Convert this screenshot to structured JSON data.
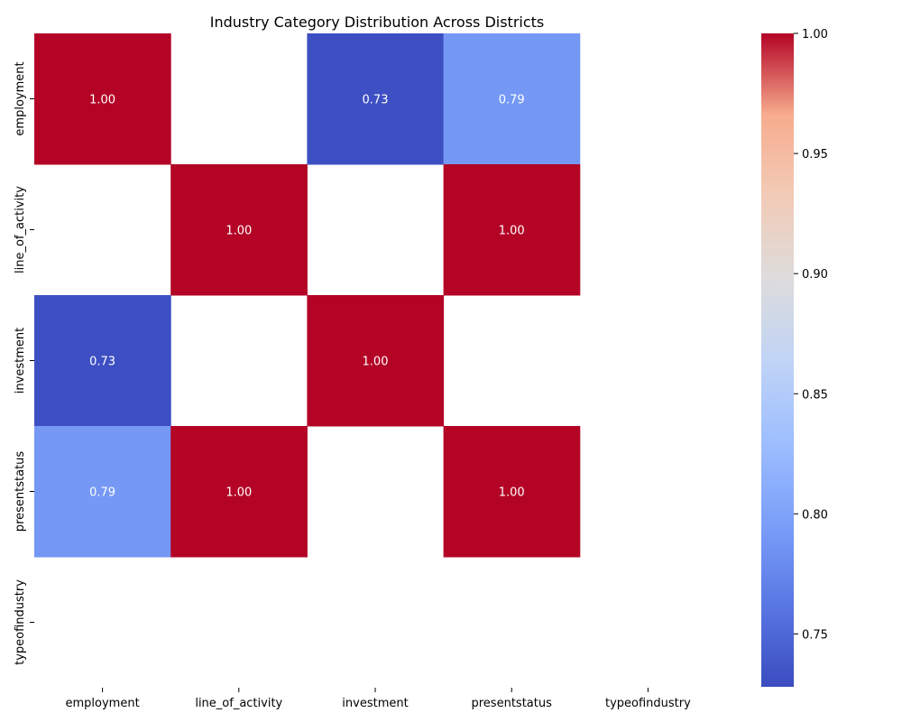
{
  "chart_data": {
    "type": "heatmap",
    "title": "Industry Category Distribution Across Districts",
    "xlabel": "",
    "ylabel": "",
    "x_categories": [
      "employment",
      "line_of_activity",
      "investment",
      "presentstatus",
      "typeofindustry"
    ],
    "y_categories": [
      "employment",
      "line_of_activity",
      "investment",
      "presentstatus",
      "typeofindustry"
    ],
    "values": [
      [
        1.0,
        null,
        0.73,
        0.79,
        null
      ],
      [
        null,
        1.0,
        null,
        1.0,
        null
      ],
      [
        0.73,
        null,
        1.0,
        null,
        null
      ],
      [
        0.79,
        1.0,
        null,
        1.0,
        null
      ],
      [
        null,
        null,
        null,
        null,
        null
      ]
    ],
    "value_format": "0.00",
    "colormap": "coolwarm",
    "colorbar": {
      "min": 0.728,
      "max": 1.0,
      "ticks": [
        "0.75",
        "0.80",
        "0.85",
        "0.90",
        "0.95",
        "1.00"
      ]
    },
    "colors": {
      "low": "#3b4cc0",
      "high": "#b40426",
      "missing": "#ffffff"
    }
  }
}
